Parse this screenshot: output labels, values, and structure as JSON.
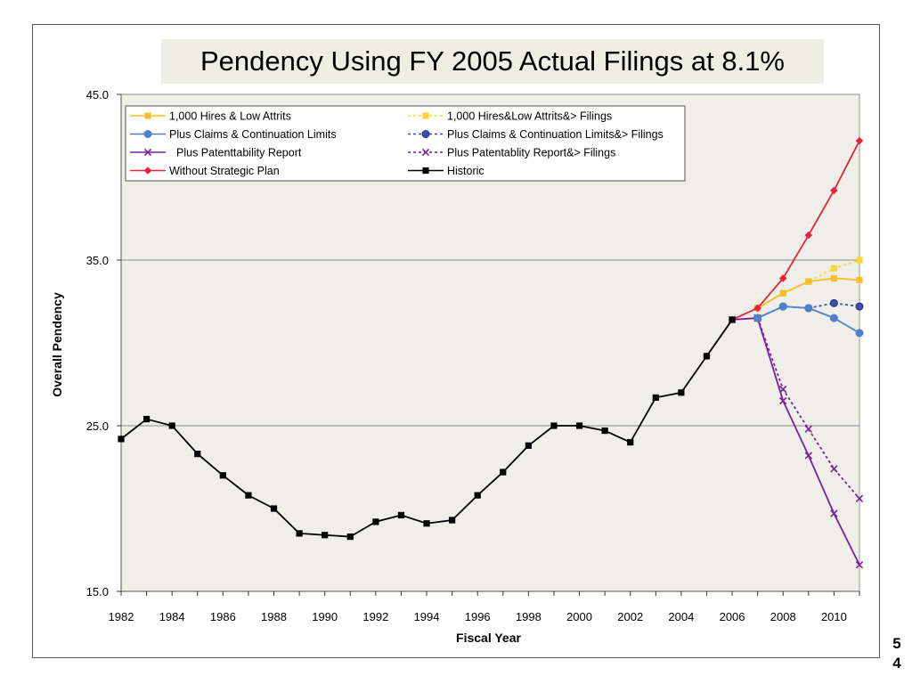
{
  "slide": {
    "title": "Pendency Using FY 2005 Actual Filings at 8.1%",
    "page_number": [
      "5",
      "4"
    ]
  },
  "chart_data": {
    "type": "line",
    "title": "Pendency Using FY 2005 Actual Filings at 8.1%",
    "xlabel": "Fiscal Year",
    "ylabel": "Overall Pendency",
    "xlim": [
      1982,
      2011
    ],
    "ylim": [
      15,
      45
    ],
    "x_ticks": [
      "1982",
      "1984",
      "1986",
      "1988",
      "1990",
      "1992",
      "1994",
      "1996",
      "1998",
      "2000",
      "2002",
      "2004",
      "2006",
      "2008",
      "2010"
    ],
    "y_ticks": [
      "15.0",
      "25.0",
      "35.0",
      "45.0"
    ],
    "grid": "horizontal",
    "legend": "top-left",
    "colors": {
      "plot_background": "#efeee8",
      "gold": "#f5c027",
      "gold_dashed": "#fcd53a",
      "blue": "#4f81c6",
      "blue_dashed_marker": "#3a4fa8",
      "purple": "#7b1fa2",
      "red": "#e1263a",
      "black": "#000000"
    },
    "series": [
      {
        "name": "1,000 Hires & Low Attrits",
        "style": "solid",
        "color": "#f5c027",
        "marker": "square",
        "x": [
          2007,
          2008,
          2009,
          2010,
          2011
        ],
        "y": [
          32.1,
          33.0,
          33.7,
          33.9,
          33.8
        ]
      },
      {
        "name": "1,000 Hires&Low Attrits&> Filings",
        "style": "dashed",
        "color": "#fcd53a",
        "marker": "square",
        "x": [
          2007,
          2008,
          2009,
          2010,
          2011
        ],
        "y": [
          32.1,
          33.0,
          33.7,
          34.5,
          35.0
        ]
      },
      {
        "name": "Plus Claims & Continuation Limits",
        "style": "solid",
        "color": "#4f81c6",
        "marker": "circle",
        "x": [
          2007,
          2008,
          2009,
          2010,
          2011
        ],
        "y": [
          31.5,
          32.2,
          32.1,
          31.5,
          30.6
        ]
      },
      {
        "name": "Plus Claims & Continuation Limits&> Filings",
        "style": "dashed",
        "color": "#3a4fa8",
        "marker": "circle",
        "x": [
          2007,
          2008,
          2009,
          2010,
          2011
        ],
        "y": [
          31.5,
          32.2,
          32.1,
          32.4,
          32.2
        ]
      },
      {
        "name": "Plus Patenttability Report",
        "style": "solid",
        "color": "#7b1fa2",
        "marker": "x",
        "x": [
          2006,
          2007,
          2008,
          2009,
          2010,
          2011
        ],
        "y": [
          31.4,
          31.5,
          26.5,
          23.2,
          19.7,
          16.6
        ]
      },
      {
        "name": "Plus Patentablity Report&> Filings",
        "style": "dashed",
        "color": "#7b1fa2",
        "marker": "x",
        "x": [
          2007,
          2008,
          2009,
          2010,
          2011
        ],
        "y": [
          31.5,
          27.2,
          24.8,
          22.4,
          20.6
        ]
      },
      {
        "name": "Without Strategic Plan",
        "style": "solid",
        "color": "#e1263a",
        "marker": "diamond",
        "x": [
          2005,
          2006,
          2007,
          2008,
          2009,
          2010,
          2011
        ],
        "y": [
          29.2,
          31.4,
          32.1,
          33.9,
          36.5,
          39.2,
          42.2
        ]
      },
      {
        "name": "Historic",
        "style": "solid",
        "color": "#000000",
        "marker": "square",
        "x": [
          1982,
          1983,
          1984,
          1985,
          1986,
          1987,
          1988,
          1989,
          1990,
          1991,
          1992,
          1993,
          1994,
          1995,
          1996,
          1997,
          1998,
          1999,
          2000,
          2001,
          2002,
          2003,
          2004,
          2005,
          2006
        ],
        "y": [
          24.2,
          25.4,
          25.0,
          23.3,
          22.0,
          20.8,
          20.0,
          18.5,
          18.4,
          18.3,
          19.2,
          19.6,
          19.1,
          19.3,
          20.8,
          22.2,
          23.8,
          25.0,
          25.0,
          24.7,
          24.0,
          26.7,
          27.0,
          29.2,
          31.4
        ]
      }
    ],
    "legend_layout": [
      [
        0,
        1
      ],
      [
        2,
        3
      ],
      [
        4,
        5
      ],
      [
        6,
        7
      ]
    ]
  }
}
